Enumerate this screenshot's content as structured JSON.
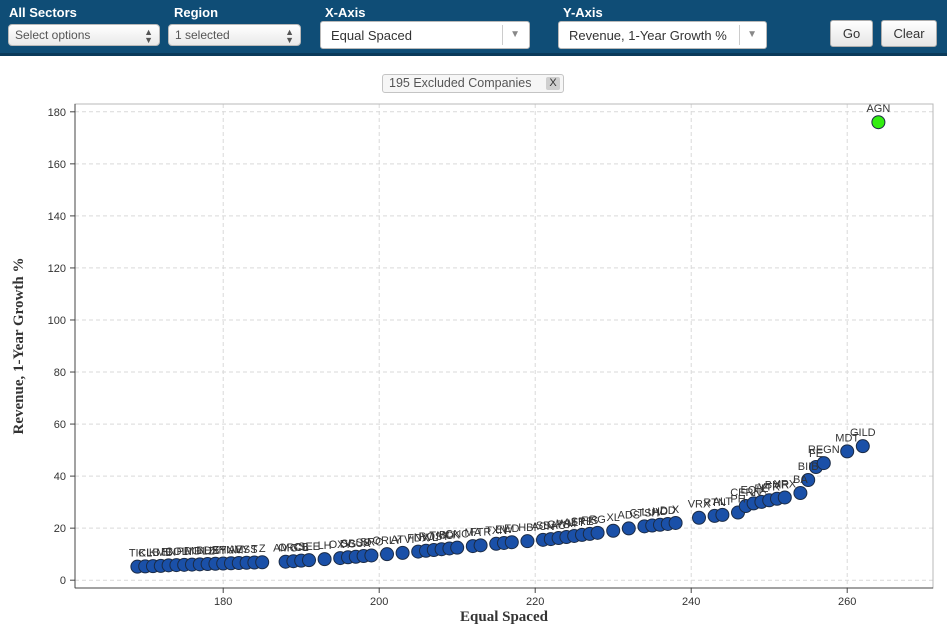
{
  "toolbar": {
    "sectors": {
      "label": "All Sectors",
      "value": "Select options"
    },
    "region": {
      "label": "Region",
      "value": "1 selected"
    },
    "xaxis": {
      "label": "X-Axis",
      "value": "Equal Spaced"
    },
    "yaxis": {
      "label": "Y-Axis",
      "value": "Revenue, 1-Year Growth %"
    },
    "go_label": "Go",
    "clear_label": "Clear"
  },
  "excluded": {
    "text": "195 Excluded Companies",
    "close": "X"
  },
  "colors": {
    "bar": "#0f4d76",
    "point": "#1a50a8",
    "highlight": "#33ee11",
    "grid": "#d9d9d9"
  },
  "chart_data": {
    "type": "scatter",
    "xlabel": "Equal Spaced",
    "ylabel": "Revenue, 1-Year Growth %",
    "xlim": [
      161,
      271
    ],
    "ylim": [
      -3,
      183
    ],
    "xticks": [
      180,
      200,
      220,
      240,
      260
    ],
    "yticks": [
      0,
      20,
      40,
      60,
      80,
      100,
      120,
      140,
      160,
      180
    ],
    "grid": true,
    "points": [
      {
        "x": 169,
        "y": 5.2,
        "label": "TIK"
      },
      {
        "x": 170,
        "y": 5.3,
        "label": "CL"
      },
      {
        "x": 171,
        "y": 5.4,
        "label": "LB"
      },
      {
        "x": 172,
        "y": 5.5,
        "label": "KMB"
      },
      {
        "x": 173,
        "y": 5.7,
        "label": "EN"
      },
      {
        "x": 174,
        "y": 5.8,
        "label": "COL"
      },
      {
        "x": 175,
        "y": 5.9,
        "label": "PH"
      },
      {
        "x": 176,
        "y": 6.0,
        "label": "DG"
      },
      {
        "x": 177,
        "y": 6.1,
        "label": "MDLZ"
      },
      {
        "x": 178,
        "y": 6.2,
        "label": "BDX"
      },
      {
        "x": 179,
        "y": 6.3,
        "label": "HSY"
      },
      {
        "x": 180,
        "y": 6.4,
        "label": "ETN"
      },
      {
        "x": 181,
        "y": 6.5,
        "label": "HUM"
      },
      {
        "x": 182,
        "y": 6.6,
        "label": "AVY"
      },
      {
        "x": 183,
        "y": 6.7,
        "label": "ESS"
      },
      {
        "x": 184,
        "y": 6.8,
        "label": "T"
      },
      {
        "x": 185,
        "y": 6.9,
        "label": "Z"
      },
      {
        "x": 188,
        "y": 7.1,
        "label": "AMG"
      },
      {
        "x": 189,
        "y": 7.3,
        "label": "ORCL"
      },
      {
        "x": 190,
        "y": 7.5,
        "label": "CB"
      },
      {
        "x": 191,
        "y": 7.7,
        "label": "SEE"
      },
      {
        "x": 193,
        "y": 8.1,
        "label": "LH"
      },
      {
        "x": 195,
        "y": 8.5,
        "label": "OXY"
      },
      {
        "x": 196,
        "y": 8.8,
        "label": "DG"
      },
      {
        "x": 197,
        "y": 9.0,
        "label": "SBUX"
      },
      {
        "x": 198,
        "y": 9.3,
        "label": "SO"
      },
      {
        "x": 199,
        "y": 9.5,
        "label": "SRC"
      },
      {
        "x": 201,
        "y": 10.0,
        "label": "ORLY"
      },
      {
        "x": 203,
        "y": 10.5,
        "label": "ATVI"
      },
      {
        "x": 205,
        "y": 11.0,
        "label": "FDX"
      },
      {
        "x": 206,
        "y": 11.3,
        "label": "NWL"
      },
      {
        "x": 207,
        "y": 11.6,
        "label": "ROST"
      },
      {
        "x": 208,
        "y": 11.9,
        "label": "TMO"
      },
      {
        "x": 209,
        "y": 12.2,
        "label": "BLK"
      },
      {
        "x": 210,
        "y": 12.5,
        "label": "CNC"
      },
      {
        "x": 212,
        "y": 13.1,
        "label": "MA"
      },
      {
        "x": 213,
        "y": 13.4,
        "label": "FTR"
      },
      {
        "x": 215,
        "y": 14.0,
        "label": "TXN"
      },
      {
        "x": 216,
        "y": 14.3,
        "label": "EW"
      },
      {
        "x": 217,
        "y": 14.6,
        "label": "ED"
      },
      {
        "x": 219,
        "y": 15.0,
        "label": "HBI"
      },
      {
        "x": 221,
        "y": 15.5,
        "label": "ACN"
      },
      {
        "x": 222,
        "y": 15.8,
        "label": "SBAC"
      },
      {
        "x": 223,
        "y": 16.2,
        "label": "GPS"
      },
      {
        "x": 224,
        "y": 16.6,
        "label": "WM"
      },
      {
        "x": 225,
        "y": 17.0,
        "label": "AET"
      },
      {
        "x": 226,
        "y": 17.4,
        "label": "SRE"
      },
      {
        "x": 227,
        "y": 17.8,
        "label": "FIS"
      },
      {
        "x": 228,
        "y": 18.2,
        "label": "RG"
      },
      {
        "x": 230,
        "y": 19.0,
        "label": "XL"
      },
      {
        "x": 232,
        "y": 19.9,
        "label": "ADS"
      },
      {
        "x": 234,
        "y": 20.7,
        "label": "CTSH"
      },
      {
        "x": 235,
        "y": 21.0,
        "label": "LUV"
      },
      {
        "x": 236,
        "y": 21.3,
        "label": "HD"
      },
      {
        "x": 237,
        "y": 21.6,
        "label": "DD"
      },
      {
        "x": 238,
        "y": 22.0,
        "label": "X"
      },
      {
        "x": 241,
        "y": 24.0,
        "label": "VRX"
      },
      {
        "x": 243,
        "y": 24.7,
        "label": "RTN"
      },
      {
        "x": 244,
        "y": 25.1,
        "label": "ALT"
      },
      {
        "x": 246,
        "y": 26.0,
        "label": "PH"
      },
      {
        "x": 247,
        "y": 28.5,
        "label": "CERN"
      },
      {
        "x": 248,
        "y": 29.5,
        "label": "EQIX"
      },
      {
        "x": 249,
        "y": 30.1,
        "label": "FE"
      },
      {
        "x": 250,
        "y": 30.7,
        "label": "VTR"
      },
      {
        "x": 251,
        "y": 31.3,
        "label": "BMR"
      },
      {
        "x": 252,
        "y": 31.8,
        "label": "XRX"
      },
      {
        "x": 254,
        "y": 33.5,
        "label": "BA"
      },
      {
        "x": 255,
        "y": 38.5,
        "label": "BIIB"
      },
      {
        "x": 256,
        "y": 43.5,
        "label": "FE"
      },
      {
        "x": 257,
        "y": 45.0,
        "label": "REGN"
      },
      {
        "x": 260,
        "y": 49.5,
        "label": "MDT"
      },
      {
        "x": 262,
        "y": 51.5,
        "label": "GILD"
      },
      {
        "x": 264,
        "y": 176.0,
        "label": "AGN",
        "highlight": true
      }
    ]
  }
}
